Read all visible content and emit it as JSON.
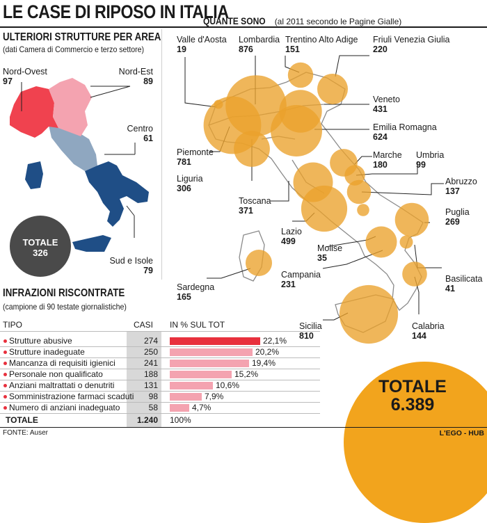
{
  "title": "LE CASE DI RIPOSO IN ITALIA",
  "areas": {
    "heading": "ULTERIORI STRUTTURE PER AREA",
    "subheading": "(dati Camera di Commercio e terzo settore)",
    "items": [
      {
        "name": "Nord-Ovest",
        "value": "97",
        "color": "#f0424f"
      },
      {
        "name": "Nord-Est",
        "value": "89",
        "color": "#f4a3b0"
      },
      {
        "name": "Centro",
        "value": "61",
        "color": "#8fa7c0"
      },
      {
        "name": "Sud e Isole",
        "value": "79",
        "color": "#1f4e86"
      }
    ],
    "total_label": "TOTALE",
    "total_value": "326"
  },
  "regions": {
    "heading": "QUANTE SONO",
    "subheading": "(al 2011 secondo le Pagine Gialle)",
    "items": [
      {
        "name": "Valle d'Aosta",
        "value": "19"
      },
      {
        "name": "Lombardia",
        "value": "876"
      },
      {
        "name": "Trentino Alto Adige",
        "value": "151"
      },
      {
        "name": "Friuli Venezia Giulia",
        "value": "220"
      },
      {
        "name": "Veneto",
        "value": "431"
      },
      {
        "name": "Emilia Romagna",
        "value": "624"
      },
      {
        "name": "Piemonte",
        "value": "781"
      },
      {
        "name": "Liguria",
        "value": "306"
      },
      {
        "name": "Marche",
        "value": "180"
      },
      {
        "name": "Umbria",
        "value": "99"
      },
      {
        "name": "Abruzzo",
        "value": "137"
      },
      {
        "name": "Toscana",
        "value": "371"
      },
      {
        "name": "Lazio",
        "value": "499"
      },
      {
        "name": "Puglia",
        "value": "269"
      },
      {
        "name": "Molise",
        "value": "35"
      },
      {
        "name": "Campania",
        "value": "231"
      },
      {
        "name": "Basilicata",
        "value": "41"
      },
      {
        "name": "Sardegna",
        "value": "165"
      },
      {
        "name": "Sicilia",
        "value": "810"
      },
      {
        "name": "Calabria",
        "value": "144"
      }
    ],
    "total_label": "TOTALE",
    "total_value": "6.389"
  },
  "infractions": {
    "heading": "INFRAZIONI RISCONTRATE",
    "subheading": "(campione di 90 testate giornalistiche)",
    "col_type": "TIPO",
    "col_cases": "CASI",
    "col_pct": "IN % SUL TOT",
    "rows": [
      {
        "type": "Strutture abusive",
        "cases": "274",
        "pct": 22.1,
        "pct_label": "22,1%"
      },
      {
        "type": "Strutture inadeguate",
        "cases": "250",
        "pct": 20.2,
        "pct_label": "20,2%"
      },
      {
        "type": "Mancanza di requisiti igienici",
        "cases": "241",
        "pct": 19.4,
        "pct_label": "19,4%"
      },
      {
        "type": "Personale non qualificato",
        "cases": "188",
        "pct": 15.2,
        "pct_label": "15,2%"
      },
      {
        "type": "Anziani maltrattati o denutriti",
        "cases": "131",
        "pct": 10.6,
        "pct_label": "10,6%"
      },
      {
        "type": "Somministrazione farmaci scaduti",
        "cases": "98",
        "pct": 7.9,
        "pct_label": "7,9%"
      },
      {
        "type": "Numero di anziani inadeguato",
        "cases": "58",
        "pct": 4.7,
        "pct_label": "4,7%"
      }
    ],
    "total_label": "TOTALE",
    "total_cases": "1.240",
    "total_pct": "100%"
  },
  "footer": {
    "source": "FONTE: Auser",
    "credit": "L'EGO - HUB"
  },
  "colors": {
    "bubble": "#eba12b",
    "bar_top": "#e8303d",
    "bar": "#f4a3b0",
    "cases_bg": "#d8d8d8"
  },
  "chart_data": {
    "type": "bar",
    "title": "INFRAZIONI RISCONTRATE",
    "categories": [
      "Strutture abusive",
      "Strutture inadeguate",
      "Mancanza di requisiti igienici",
      "Personale non qualificato",
      "Anziani maltrattati o denutriti",
      "Somministrazione farmaci scaduti",
      "Numero di anziani inadeguato"
    ],
    "series": [
      {
        "name": "CASI",
        "values": [
          274,
          250,
          241,
          188,
          131,
          98,
          58
        ]
      },
      {
        "name": "IN % SUL TOT",
        "values": [
          22.1,
          20.2,
          19.4,
          15.2,
          10.6,
          7.9,
          4.7
        ]
      }
    ],
    "xlabel": "",
    "ylabel": "IN % SUL TOT",
    "xlim": [
      0,
      22.1
    ],
    "bubble_map": {
      "type": "bubble",
      "title": "QUANTE SONO",
      "regions": [
        "Valle d'Aosta",
        "Lombardia",
        "Trentino Alto Adige",
        "Friuli Venezia Giulia",
        "Veneto",
        "Emilia Romagna",
        "Piemonte",
        "Liguria",
        "Marche",
        "Umbria",
        "Abruzzo",
        "Toscana",
        "Lazio",
        "Puglia",
        "Molise",
        "Campania",
        "Basilicata",
        "Sardegna",
        "Sicilia",
        "Calabria"
      ],
      "values": [
        19,
        876,
        151,
        220,
        431,
        624,
        781,
        306,
        180,
        99,
        137,
        371,
        499,
        269,
        35,
        231,
        41,
        165,
        810,
        144
      ],
      "total": 6389
    },
    "area_map": {
      "type": "choropleth",
      "title": "ULTERIORI STRUTTURE PER AREA",
      "areas": [
        "Nord-Ovest",
        "Nord-Est",
        "Centro",
        "Sud e Isole"
      ],
      "values": [
        97,
        89,
        61,
        79
      ],
      "total": 326
    }
  }
}
